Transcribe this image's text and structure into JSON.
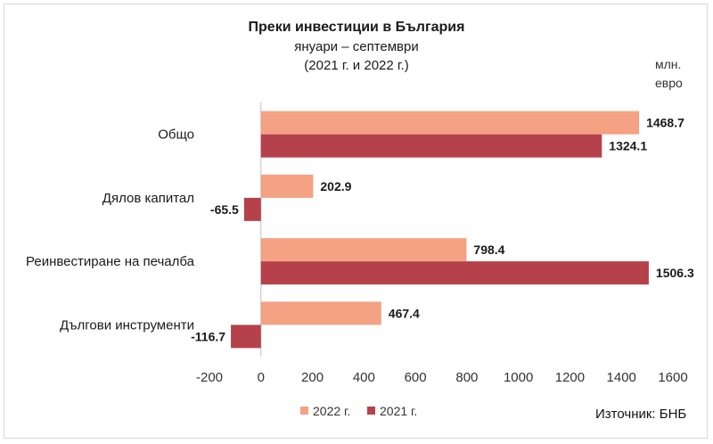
{
  "chart_data": {
    "type": "bar",
    "orientation": "horizontal",
    "title": "Преки  инвестиции в България",
    "subtitle_lines": [
      "януари – септември",
      "(2021 г. и 2022 г.)"
    ],
    "unit_lines": [
      "млн.",
      "евро"
    ],
    "categories": [
      "Общо",
      "Дялов капитал",
      "Реинвестиране на печалба",
      "Дългови инструменти"
    ],
    "series": [
      {
        "name": "2022 г.",
        "color": "#f4a184",
        "values": [
          1468.7,
          202.9,
          798.4,
          467.4
        ],
        "labels": [
          "1468.7",
          "202.9",
          "798.4",
          "467.4"
        ]
      },
      {
        "name": "2021 г.",
        "color": "#b5424a",
        "values": [
          1324.1,
          -65.5,
          1506.3,
          -116.7
        ],
        "labels": [
          "1324.1",
          "-65.5",
          "1506.3",
          "-116.7"
        ]
      }
    ],
    "xlim": [
      -200,
      1600
    ],
    "xticks": [
      -200,
      0,
      200,
      400,
      600,
      800,
      1000,
      1200,
      1400,
      1600
    ],
    "xtick_labels": [
      "-200",
      "0",
      "200",
      "400",
      "600",
      "800",
      "1000",
      "1200",
      "1400",
      "1600"
    ],
    "grid": false,
    "legend_position": "bottom"
  },
  "source": "Източник: БНБ"
}
